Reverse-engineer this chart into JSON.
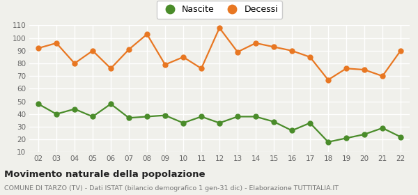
{
  "years": [
    "02",
    "03",
    "04",
    "05",
    "06",
    "07",
    "08",
    "09",
    "10",
    "11",
    "12",
    "13",
    "14",
    "15",
    "16",
    "17",
    "18",
    "19",
    "20",
    "21",
    "22"
  ],
  "nascite": [
    48,
    40,
    44,
    38,
    48,
    37,
    38,
    39,
    33,
    38,
    33,
    38,
    38,
    34,
    27,
    33,
    18,
    21,
    24,
    29,
    22
  ],
  "decessi": [
    92,
    96,
    80,
    90,
    76,
    91,
    103,
    79,
    85,
    76,
    108,
    89,
    96,
    93,
    90,
    85,
    67,
    76,
    75,
    70,
    90
  ],
  "nascite_color": "#4a8c2a",
  "decessi_color": "#e87722",
  "bg_color": "#f0f0eb",
  "grid_color": "#ffffff",
  "ylim": [
    10,
    110
  ],
  "yticks": [
    10,
    20,
    30,
    40,
    50,
    60,
    70,
    80,
    90,
    100,
    110
  ],
  "title": "Movimento naturale della popolazione",
  "subtitle": "COMUNE DI TARZO (TV) - Dati ISTAT (bilancio demografico 1 gen-31 dic) - Elaborazione TUTTITALIA.IT",
  "legend_labels": [
    "Nascite",
    "Decessi"
  ],
  "marker_size": 5,
  "line_width": 1.6
}
